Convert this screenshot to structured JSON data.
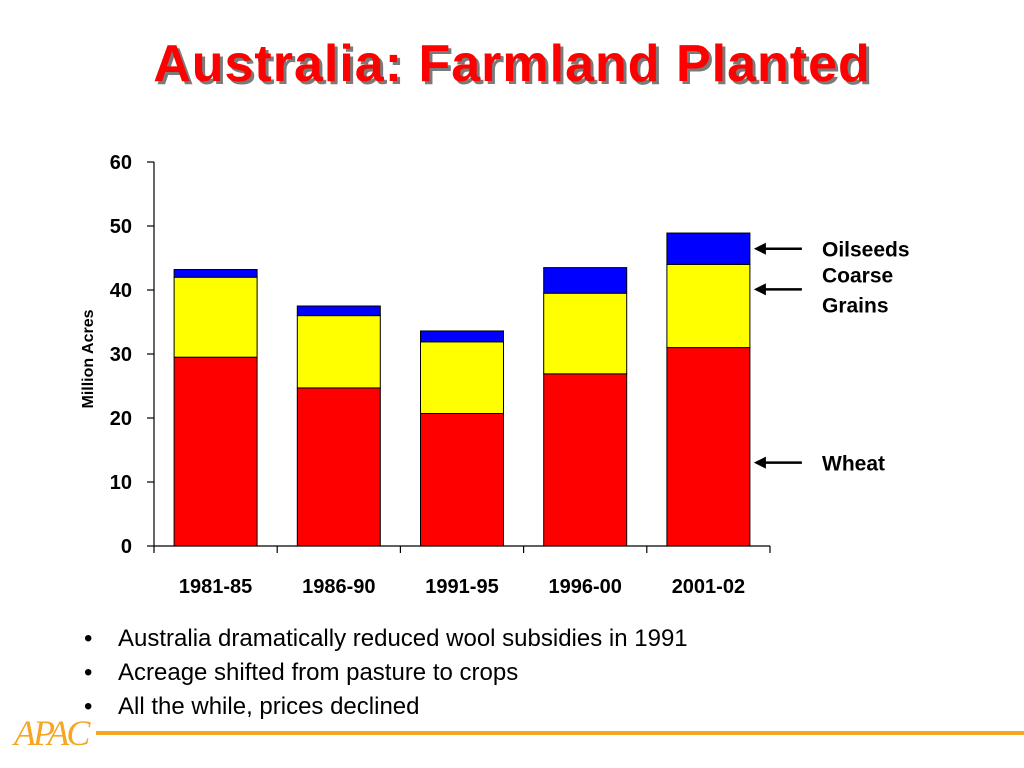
{
  "slide": {
    "title": "Australia: Farmland Planted",
    "bullets": [
      "Australia dramatically reduced wool subsidies in 1991",
      "Acreage shifted from pasture to crops",
      "All the while, prices declined"
    ],
    "logo_text": "APAC",
    "accent_color": "#f5a623",
    "title_color": "#ff0000"
  },
  "chart_data": {
    "type": "bar",
    "stacked": true,
    "categories": [
      "1981-85",
      "1986-90",
      "1991-95",
      "1996-00",
      "2001-02"
    ],
    "series": [
      {
        "name": "Wheat",
        "values": [
          29.5,
          24.7,
          20.7,
          26.9,
          31.0
        ],
        "color": "#ff0000"
      },
      {
        "name": "Coarse Grains",
        "values": [
          12.5,
          11.3,
          11.2,
          12.6,
          13.0
        ],
        "color": "#ffff00"
      },
      {
        "name": "Oilseeds",
        "values": [
          1.2,
          1.5,
          1.7,
          4.0,
          4.9
        ],
        "color": "#0000ff"
      }
    ],
    "legend_labels": [
      {
        "series": "Oilseeds",
        "lines": [
          "Oilseeds"
        ]
      },
      {
        "series": "Coarse Grains",
        "lines": [
          "Coarse",
          "Grains"
        ]
      },
      {
        "series": "Wheat",
        "lines": [
          "Wheat"
        ]
      }
    ],
    "ylabel": "Million Acres",
    "ylim": [
      0,
      60
    ],
    "yticks": [
      0,
      10,
      20,
      30,
      40,
      50,
      60
    ],
    "grid": false,
    "legend_placement": "right"
  }
}
